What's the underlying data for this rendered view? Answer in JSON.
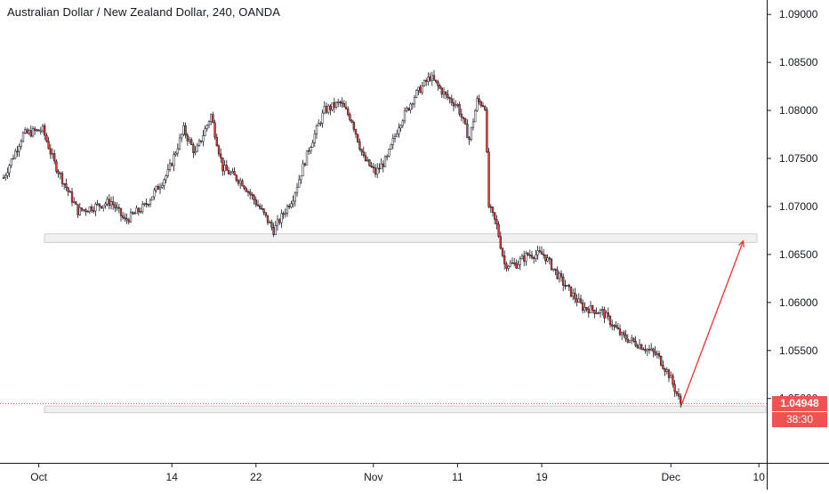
{
  "header": {
    "title": "Australian Dollar / New Zealand Dollar, 240, OANDA"
  },
  "colors": {
    "up": "#ffffff",
    "down": "#e53935",
    "wick": "#131722",
    "axis": "#131722",
    "arrow": "#f23030",
    "price_line": "#ef5350",
    "zone_fill": "#f0f0f0",
    "zone_stroke": "#cfcfcf"
  },
  "price_tag": {
    "value": "1.04948"
  },
  "countdown_tag": {
    "value": "38:30"
  },
  "chart_data": {
    "type": "candlestick",
    "title": "Australian Dollar / New Zealand Dollar, 240, OANDA",
    "x_tick_labels": [
      "Oct",
      "14",
      "22",
      "Nov",
      "11",
      "19",
      "Dec",
      "10"
    ],
    "y_tick_labels": [
      "1.09000",
      "1.08500",
      "1.08000",
      "1.07500",
      "1.07000",
      "1.06500",
      "1.06000",
      "1.05500",
      "1.05000"
    ],
    "ylim": [
      1.0433,
      1.0915
    ],
    "grid": false,
    "last_price": 1.04948,
    "anchors": [
      [
        0,
        1.073
      ],
      [
        10,
        1.0775
      ],
      [
        20,
        1.078
      ],
      [
        26,
        1.0745
      ],
      [
        38,
        1.0695
      ],
      [
        55,
        1.0705
      ],
      [
        62,
        1.0685
      ],
      [
        72,
        1.07
      ],
      [
        84,
        1.0735
      ],
      [
        92,
        1.078
      ],
      [
        98,
        1.0755
      ],
      [
        106,
        1.0795
      ],
      [
        112,
        1.074
      ],
      [
        122,
        1.0725
      ],
      [
        132,
        1.0695
      ],
      [
        138,
        1.0675
      ],
      [
        148,
        1.071
      ],
      [
        156,
        1.076
      ],
      [
        164,
        1.08
      ],
      [
        172,
        1.0808
      ],
      [
        178,
        1.079
      ],
      [
        184,
        1.075
      ],
      [
        190,
        1.0735
      ],
      [
        196,
        1.075
      ],
      [
        202,
        1.0785
      ],
      [
        210,
        1.0815
      ],
      [
        218,
        1.0835
      ],
      [
        226,
        1.0815
      ],
      [
        232,
        1.0805
      ],
      [
        238,
        1.077
      ],
      [
        242,
        1.081
      ],
      [
        246,
        1.0805
      ],
      [
        248,
        1.07
      ],
      [
        252,
        1.068
      ],
      [
        256,
        1.064
      ],
      [
        262,
        1.064
      ],
      [
        268,
        1.065
      ],
      [
        276,
        1.065
      ],
      [
        286,
        1.062
      ],
      [
        296,
        1.0595
      ],
      [
        306,
        1.059
      ],
      [
        316,
        1.0565
      ],
      [
        326,
        1.0555
      ],
      [
        334,
        1.0545
      ],
      [
        340,
        1.0525
      ],
      [
        346,
        1.0495
      ]
    ],
    "zones": [
      {
        "name": "resistance-zone",
        "top": 1.06715,
        "bottom": 1.06625
      },
      {
        "name": "support-zone",
        "top": 1.04922,
        "bottom": 1.04852
      }
    ],
    "projection": {
      "from": [
        346,
        1.0491
      ],
      "to": [
        378,
        1.0664
      ]
    }
  }
}
